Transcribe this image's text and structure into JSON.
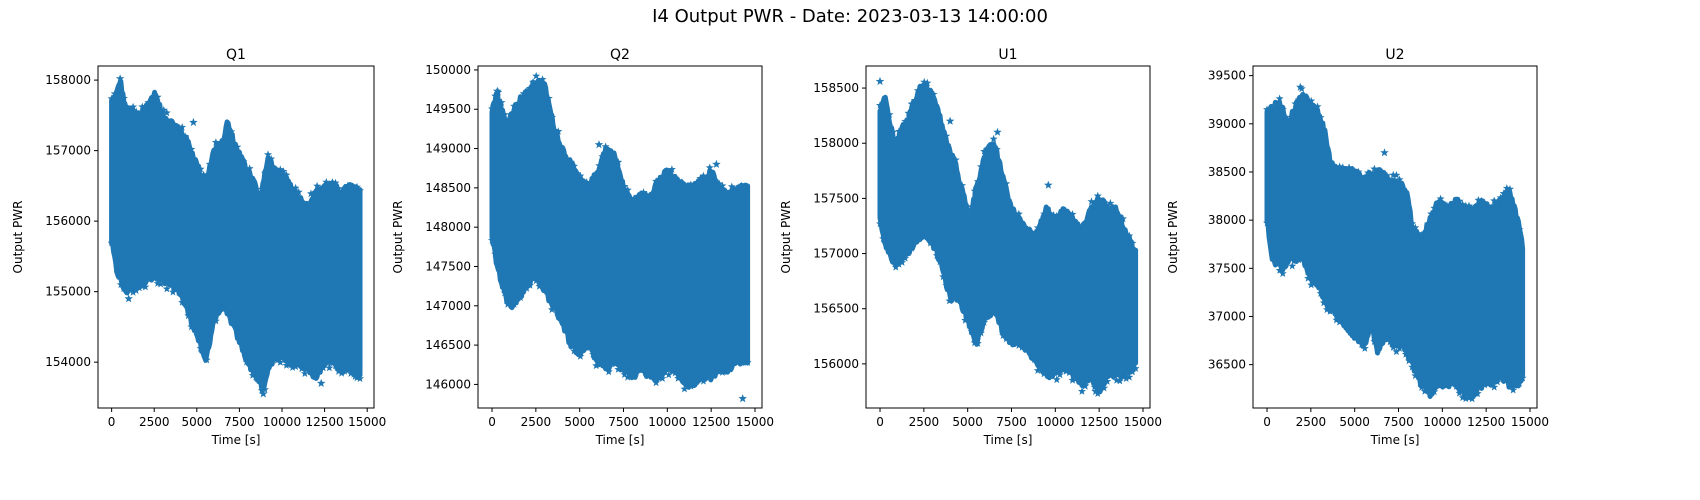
{
  "suptitle": "I4 Output PWR - Date: 2023-03-13 14:00:00",
  "chart_data": [
    {
      "type": "scatter",
      "title": "Q1",
      "xlabel": "Time [s]",
      "ylabel": "Output PWR",
      "marker": "star",
      "color": "#1f77b4",
      "xlim": [
        -800,
        15400
      ],
      "ylim": [
        153350,
        158200
      ],
      "xticks": [
        0,
        2500,
        5000,
        7500,
        10000,
        12500,
        15000
      ],
      "yticks": [
        154000,
        155000,
        156000,
        157000,
        158000
      ],
      "x_range": [
        0,
        14600
      ],
      "upper": [
        [
          0,
          157700
        ],
        [
          300,
          157800
        ],
        [
          500,
          158000
        ],
        [
          800,
          157600
        ],
        [
          1500,
          157500
        ],
        [
          2000,
          157600
        ],
        [
          2500,
          157800
        ],
        [
          3000,
          157500
        ],
        [
          3500,
          157400
        ],
        [
          4000,
          157300
        ],
        [
          4500,
          157100
        ],
        [
          5000,
          156800
        ],
        [
          5500,
          156500
        ],
        [
          6000,
          157000
        ],
        [
          6500,
          157100
        ],
        [
          6800,
          157400
        ],
        [
          7200,
          157100
        ],
        [
          7800,
          156800
        ],
        [
          8300,
          156600
        ],
        [
          8700,
          156300
        ],
        [
          9200,
          156900
        ],
        [
          9600,
          156700
        ],
        [
          10200,
          156600
        ],
        [
          10800,
          156400
        ],
        [
          11400,
          156200
        ],
        [
          12000,
          156400
        ],
        [
          12500,
          156500
        ],
        [
          13000,
          156500
        ],
        [
          13500,
          156400
        ],
        [
          14000,
          156500
        ],
        [
          14600,
          156400
        ]
      ],
      "lower": [
        [
          0,
          155700
        ],
        [
          300,
          155300
        ],
        [
          800,
          155000
        ],
        [
          1500,
          155100
        ],
        [
          2500,
          155200
        ],
        [
          3500,
          155100
        ],
        [
          4000,
          155000
        ],
        [
          4500,
          154700
        ],
        [
          5000,
          154400
        ],
        [
          5500,
          154000
        ],
        [
          6000,
          154600
        ],
        [
          6500,
          154800
        ],
        [
          7000,
          154600
        ],
        [
          7500,
          154300
        ],
        [
          8000,
          154000
        ],
        [
          8500,
          153800
        ],
        [
          8900,
          153600
        ],
        [
          9300,
          154000
        ],
        [
          10000,
          154100
        ],
        [
          10500,
          154000
        ],
        [
          11000,
          154000
        ],
        [
          11500,
          153900
        ],
        [
          12000,
          153800
        ],
        [
          12500,
          154000
        ],
        [
          13000,
          154000
        ],
        [
          13500,
          153900
        ],
        [
          14000,
          153900
        ],
        [
          14600,
          153850
        ]
      ],
      "outliers": [
        [
          500,
          158020
        ],
        [
          1000,
          154900
        ],
        [
          4800,
          157400
        ],
        [
          8900,
          153550
        ],
        [
          12300,
          153700
        ],
        [
          14300,
          153800
        ]
      ]
    },
    {
      "type": "scatter",
      "title": "Q2",
      "xlabel": "Time [s]",
      "ylabel": "Output PWR",
      "marker": "star",
      "color": "#1f77b4",
      "xlim": [
        -800,
        15400
      ],
      "ylim": [
        145700,
        150050
      ],
      "xticks": [
        0,
        2500,
        5000,
        7500,
        10000,
        12500,
        15000
      ],
      "yticks": [
        146000,
        146500,
        147000,
        147500,
        148000,
        148500,
        149000,
        149500,
        150000
      ],
      "x_range": [
        0,
        14600
      ],
      "upper": [
        [
          0,
          149500
        ],
        [
          300,
          149700
        ],
        [
          800,
          149300
        ],
        [
          1500,
          149600
        ],
        [
          2000,
          149700
        ],
        [
          2500,
          149850
        ],
        [
          3000,
          149800
        ],
        [
          3500,
          149300
        ],
        [
          4000,
          149000
        ],
        [
          4500,
          148800
        ],
        [
          5000,
          148600
        ],
        [
          5500,
          148500
        ],
        [
          6000,
          148700
        ],
        [
          6500,
          149000
        ],
        [
          7000,
          148900
        ],
        [
          7500,
          148500
        ],
        [
          8000,
          148300
        ],
        [
          8500,
          148400
        ],
        [
          9000,
          148400
        ],
        [
          9500,
          148600
        ],
        [
          10000,
          148700
        ],
        [
          10500,
          148600
        ],
        [
          11000,
          148500
        ],
        [
          11500,
          148500
        ],
        [
          12000,
          148600
        ],
        [
          12500,
          148700
        ],
        [
          13000,
          148500
        ],
        [
          13500,
          148400
        ],
        [
          14000,
          148500
        ],
        [
          14600,
          148500
        ]
      ],
      "lower": [
        [
          0,
          147900
        ],
        [
          300,
          147500
        ],
        [
          800,
          147100
        ],
        [
          1200,
          147000
        ],
        [
          1800,
          147200
        ],
        [
          2500,
          147400
        ],
        [
          3000,
          147200
        ],
        [
          3500,
          147000
        ],
        [
          4000,
          146800
        ],
        [
          4500,
          146500
        ],
        [
          5000,
          146400
        ],
        [
          5500,
          146500
        ],
        [
          6000,
          146300
        ],
        [
          6500,
          146200
        ],
        [
          7000,
          146300
        ],
        [
          7500,
          146200
        ],
        [
          8000,
          146100
        ],
        [
          8500,
          146200
        ],
        [
          9000,
          146100
        ],
        [
          9500,
          146100
        ],
        [
          10000,
          146200
        ],
        [
          10500,
          146200
        ],
        [
          11000,
          146000
        ],
        [
          11500,
          146000
        ],
        [
          12000,
          146100
        ],
        [
          12500,
          146100
        ],
        [
          13000,
          146200
        ],
        [
          13500,
          146200
        ],
        [
          14000,
          146300
        ],
        [
          14600,
          146300
        ]
      ],
      "outliers": [
        [
          300,
          149730
        ],
        [
          2700,
          149850
        ],
        [
          6100,
          149050
        ],
        [
          12800,
          148800
        ],
        [
          14300,
          145820
        ]
      ]
    },
    {
      "type": "scatter",
      "title": "U1",
      "xlabel": "Time [s]",
      "ylabel": "Output PWR",
      "marker": "star",
      "color": "#1f77b4",
      "xlim": [
        -800,
        15400
      ],
      "ylim": [
        155600,
        158700
      ],
      "xticks": [
        0,
        2500,
        5000,
        7500,
        10000,
        12500,
        15000
      ],
      "yticks": [
        156000,
        156500,
        157000,
        157500,
        158000,
        158500
      ],
      "x_range": [
        0,
        14600
      ],
      "upper": [
        [
          0,
          158300
        ],
        [
          300,
          158400
        ],
        [
          800,
          158000
        ],
        [
          1200,
          158100
        ],
        [
          1800,
          158300
        ],
        [
          2300,
          158500
        ],
        [
          2800,
          158500
        ],
        [
          3300,
          158300
        ],
        [
          3800,
          158000
        ],
        [
          4300,
          157800
        ],
        [
          4800,
          157500
        ],
        [
          5100,
          157300
        ],
        [
          5500,
          157600
        ],
        [
          6000,
          157900
        ],
        [
          6500,
          158000
        ],
        [
          7000,
          157700
        ],
        [
          7500,
          157400
        ],
        [
          8000,
          157300
        ],
        [
          8500,
          157200
        ],
        [
          9000,
          157200
        ],
        [
          9500,
          157400
        ],
        [
          10000,
          157300
        ],
        [
          10500,
          157400
        ],
        [
          11000,
          157300
        ],
        [
          11500,
          157200
        ],
        [
          12000,
          157400
        ],
        [
          12500,
          157500
        ],
        [
          13000,
          157400
        ],
        [
          13500,
          157400
        ],
        [
          14000,
          157200
        ],
        [
          14600,
          157000
        ]
      ],
      "lower": [
        [
          0,
          157300
        ],
        [
          300,
          157100
        ],
        [
          800,
          156900
        ],
        [
          1500,
          157000
        ],
        [
          2500,
          157200
        ],
        [
          3000,
          157100
        ],
        [
          3500,
          156900
        ],
        [
          4000,
          156600
        ],
        [
          4500,
          156600
        ],
        [
          5000,
          156400
        ],
        [
          5500,
          156200
        ],
        [
          6000,
          156400
        ],
        [
          6500,
          156500
        ],
        [
          7000,
          156300
        ],
        [
          7500,
          156200
        ],
        [
          8000,
          156200
        ],
        [
          8500,
          156100
        ],
        [
          9000,
          156000
        ],
        [
          9500,
          155900
        ],
        [
          10000,
          155900
        ],
        [
          10500,
          156000
        ],
        [
          11000,
          155900
        ],
        [
          11500,
          155800
        ],
        [
          12000,
          155900
        ],
        [
          12500,
          155750
        ],
        [
          13000,
          155900
        ],
        [
          13500,
          155900
        ],
        [
          14000,
          155900
        ],
        [
          14600,
          156000
        ]
      ],
      "outliers": [
        [
          0,
          158560
        ],
        [
          4000,
          158200
        ],
        [
          6700,
          158100
        ],
        [
          9600,
          157620
        ],
        [
          11700,
          155800
        ],
        [
          12300,
          155750
        ]
      ]
    },
    {
      "type": "scatter",
      "title": "U2",
      "xlabel": "Time [s]",
      "ylabel": "Output PWR",
      "marker": "star",
      "color": "#1f77b4",
      "xlim": [
        -800,
        15400
      ],
      "ylim": [
        36050,
        39600
      ],
      "xticks": [
        0,
        2500,
        5000,
        7500,
        10000,
        12500,
        15000
      ],
      "yticks": [
        36500,
        37000,
        37500,
        38000,
        38500,
        39000,
        39500
      ],
      "x_range": [
        0,
        14600
      ],
      "upper": [
        [
          0,
          39100
        ],
        [
          300,
          39200
        ],
        [
          800,
          39200
        ],
        [
          1200,
          39000
        ],
        [
          1700,
          39200
        ],
        [
          2000,
          39300
        ],
        [
          2500,
          39200
        ],
        [
          3000,
          39100
        ],
        [
          3300,
          38900
        ],
        [
          3600,
          38600
        ],
        [
          4000,
          38500
        ],
        [
          4500,
          38500
        ],
        [
          5000,
          38500
        ],
        [
          5500,
          38400
        ],
        [
          6000,
          38500
        ],
        [
          6500,
          38500
        ],
        [
          7000,
          38400
        ],
        [
          7500,
          38400
        ],
        [
          8000,
          38300
        ],
        [
          8300,
          37900
        ],
        [
          8800,
          37800
        ],
        [
          9300,
          38000
        ],
        [
          9800,
          38200
        ],
        [
          10300,
          38100
        ],
        [
          10800,
          38200
        ],
        [
          11300,
          38100
        ],
        [
          11800,
          38100
        ],
        [
          12300,
          38200
        ],
        [
          12800,
          38100
        ],
        [
          13300,
          38200
        ],
        [
          13800,
          38300
        ],
        [
          14300,
          38000
        ],
        [
          14600,
          37700
        ]
      ],
      "lower": [
        [
          0,
          38000
        ],
        [
          300,
          37600
        ],
        [
          800,
          37500
        ],
        [
          1500,
          37600
        ],
        [
          2000,
          37600
        ],
        [
          2500,
          37400
        ],
        [
          3000,
          37300
        ],
        [
          3500,
          37100
        ],
        [
          4000,
          37000
        ],
        [
          4500,
          36900
        ],
        [
          5000,
          36800
        ],
        [
          5500,
          36700
        ],
        [
          6000,
          36900
        ],
        [
          6300,
          36600
        ],
        [
          6800,
          36800
        ],
        [
          7300,
          36700
        ],
        [
          7800,
          36700
        ],
        [
          8300,
          36500
        ],
        [
          8800,
          36300
        ],
        [
          9300,
          36200
        ],
        [
          9800,
          36300
        ],
        [
          10300,
          36300
        ],
        [
          10800,
          36300
        ],
        [
          11300,
          36200
        ],
        [
          11800,
          36200
        ],
        [
          12300,
          36300
        ],
        [
          12800,
          36300
        ],
        [
          13300,
          36400
        ],
        [
          13800,
          36300
        ],
        [
          14300,
          36300
        ],
        [
          14600,
          36400
        ]
      ],
      "outliers": [
        [
          1900,
          39380
        ],
        [
          6700,
          38700
        ],
        [
          9300,
          36200
        ],
        [
          12000,
          36200
        ]
      ]
    }
  ]
}
